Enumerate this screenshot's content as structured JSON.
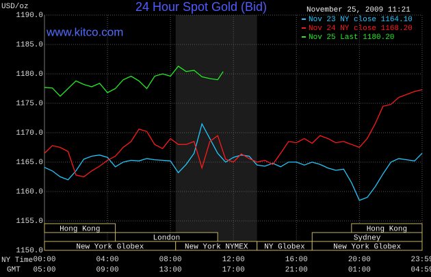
{
  "chart_data": {
    "type": "line",
    "title": "24 Hour Spot Gold (Bid)",
    "ylabel": "USD/oz",
    "watermark": "www.kitco.com",
    "timestamp": "November 25, 2009 11:21",
    "xlabel": "NY Time",
    "x2label": "GMT",
    "xlim": [
      0,
      23.983
    ],
    "ylim": [
      1150,
      1190
    ],
    "xticks": [
      {
        "value": 0,
        "label": "00:00"
      },
      {
        "value": 4,
        "label": "04:00"
      },
      {
        "value": 8,
        "label": "08:00"
      },
      {
        "value": 12,
        "label": "12:00"
      },
      {
        "value": 16,
        "label": "16:00"
      },
      {
        "value": 20,
        "label": "20:00"
      },
      {
        "value": 23.983,
        "label": "23:59"
      }
    ],
    "x2ticks": [
      {
        "value": 0,
        "label": "05:00"
      },
      {
        "value": 4,
        "label": "09:00"
      },
      {
        "value": 8,
        "label": "13:00"
      },
      {
        "value": 12,
        "label": "17:00"
      },
      {
        "value": 16,
        "label": "21:00"
      },
      {
        "value": 20,
        "label": "01:00"
      },
      {
        "value": 23.983,
        "label": "04:59"
      }
    ],
    "yticks": [
      {
        "value": 1150,
        "label": "1150.0"
      },
      {
        "value": 1155,
        "label": "1155.0"
      },
      {
        "value": 1160,
        "label": "1160.0"
      },
      {
        "value": 1165,
        "label": "1165.0"
      },
      {
        "value": 1170,
        "label": "1170.0"
      },
      {
        "value": 1175,
        "label": "1175.0"
      },
      {
        "value": 1180,
        "label": "1180.0"
      },
      {
        "value": 1185,
        "label": "1185.0"
      },
      {
        "value": 1190,
        "label": "1190.0"
      }
    ],
    "grid": true,
    "highlight": {
      "start": 8.33,
      "end": 13.5
    },
    "sessions": [
      [
        {
          "label": "Hong Kong",
          "start": 0,
          "end": 4.5
        },
        {
          "label": "Hong Kong",
          "start": 19.5,
          "end": 23.983
        }
      ],
      [
        {
          "label": "London",
          "start": 4.5,
          "end": 11
        },
        {
          "label": "Sydney",
          "start": 17,
          "end": 23.983
        }
      ],
      [
        {
          "label": "New York Globex",
          "start": 0,
          "end": 8.33
        },
        {
          "label": "New York NYMEX",
          "start": 8.33,
          "end": 13.5
        },
        {
          "label": "NY Globex",
          "start": 13.5,
          "end": 17
        },
        {
          "label": "New York Globex",
          "start": 17,
          "end": 23.983
        }
      ]
    ],
    "series": [
      {
        "name": "Nov 23 NY close 1164.10",
        "color": "#22c8ff",
        "x": [
          0,
          0.5,
          1,
          1.5,
          2,
          2.5,
          3,
          3.5,
          4,
          4.5,
          5,
          5.5,
          6,
          6.5,
          7,
          7.5,
          8,
          8.5,
          9,
          9.5,
          10,
          10.5,
          11,
          11.5,
          12,
          12.5,
          13,
          13.5,
          14,
          14.5,
          15,
          15.5,
          16,
          16.5,
          17,
          17.5,
          18,
          18.5,
          19,
          19.5,
          20,
          20.5,
          21,
          21.5,
          22,
          22.5,
          23,
          23.5,
          23.983
        ],
        "values": [
          1164.1,
          1163.5,
          1162.5,
          1162,
          1163.5,
          1165.5,
          1166,
          1166.2,
          1165.8,
          1164.2,
          1165,
          1165.3,
          1165.2,
          1165.6,
          1165.4,
          1165.3,
          1165.2,
          1163.2,
          1164.6,
          1166.5,
          1171.5,
          1169,
          1166.5,
          1165,
          1165.8,
          1166.2,
          1166,
          1164.5,
          1164.3,
          1164.8,
          1164.2,
          1165,
          1165,
          1164.5,
          1165,
          1164.6,
          1164,
          1163.6,
          1163.8,
          1161.5,
          1158.5,
          1159,
          1160.8,
          1163,
          1165,
          1165.6,
          1165.4,
          1165.2,
          1166.5
        ]
      },
      {
        "name": "Nov 24 NY close 1168.20",
        "color": "#ff1a1a",
        "x": [
          0,
          0.5,
          1,
          1.5,
          2,
          2.5,
          3,
          3.5,
          4,
          4.5,
          5,
          5.5,
          6,
          6.5,
          7,
          7.5,
          8,
          8.5,
          9,
          9.5,
          10,
          10.5,
          11,
          11.5,
          12,
          12.5,
          13,
          13.5,
          14,
          14.5,
          15,
          15.5,
          16,
          16.5,
          17,
          17.5,
          18,
          18.5,
          19,
          19.5,
          20,
          20.5,
          21,
          21.5,
          22,
          22.5,
          23,
          23.5,
          23.983
        ],
        "values": [
          1166.5,
          1167.8,
          1167.5,
          1166.8,
          1162.8,
          1162.5,
          1163.5,
          1164.3,
          1165.3,
          1166,
          1167.5,
          1168.5,
          1170.6,
          1170.2,
          1168,
          1167.3,
          1169,
          1168,
          1168,
          1168.5,
          1164,
          1168.5,
          1169.5,
          1165.5,
          1165,
          1166.4,
          1165.6,
          1165,
          1165.3,
          1164.6,
          1166.5,
          1168.5,
          1168.3,
          1169,
          1168.2,
          1169.5,
          1169,
          1168.3,
          1168.5,
          1168,
          1167.5,
          1169,
          1171.5,
          1174.5,
          1174.8,
          1176,
          1176.5,
          1177,
          1177.3
        ]
      },
      {
        "name": "Nov 25 Last 1180.20",
        "color": "#22ee22",
        "x": [
          0,
          0.5,
          1,
          1.5,
          2,
          2.5,
          3,
          3.5,
          4,
          4.5,
          5,
          5.5,
          6,
          6.5,
          7,
          7.5,
          8,
          8.5,
          9,
          9.5,
          10,
          10.5,
          11,
          11.35
        ],
        "values": [
          1177.7,
          1177.6,
          1176.2,
          1177.5,
          1178.8,
          1178.2,
          1177.8,
          1178.4,
          1176.8,
          1177.5,
          1179,
          1179.6,
          1178.8,
          1177.5,
          1179.6,
          1180,
          1179.6,
          1181.3,
          1180.4,
          1180.6,
          1179.5,
          1179.2,
          1179,
          1180.4
        ]
      }
    ]
  }
}
